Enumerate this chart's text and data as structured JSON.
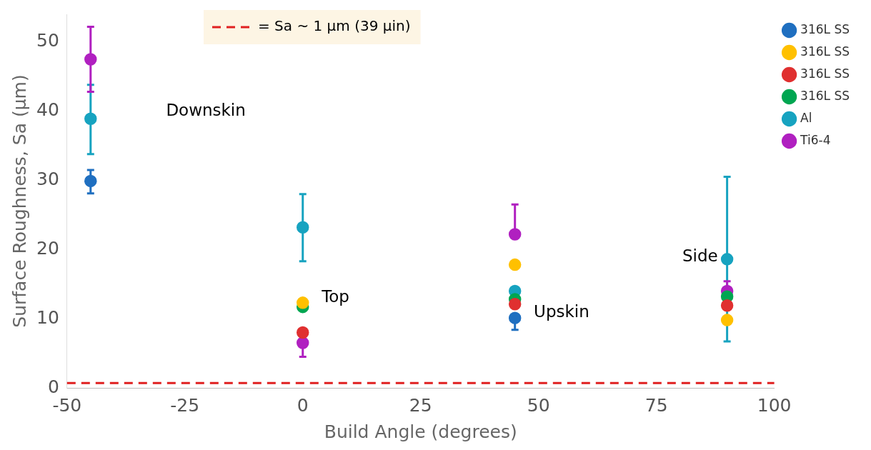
{
  "chart_data": {
    "type": "scatter",
    "xlabel": "Build Angle (degrees)",
    "ylabel": "Surface Roughness, Sa (μm)",
    "xlim": [
      -50,
      100
    ],
    "xticks": [
      -50,
      -25,
      0,
      25,
      50,
      75,
      100
    ],
    "ylim": [
      0,
      54
    ],
    "yticks": [
      0,
      10,
      20,
      30,
      40,
      50
    ],
    "grid": false,
    "legend": "top right",
    "marker": "circle",
    "series": [
      {
        "name": "316L SS",
        "color": "#1f6fc0",
        "x": [
          -45,
          45
        ],
        "values": [
          29.9,
          10.1
        ],
        "errors": [
          [
            28.1,
            31.5
          ],
          [
            8.4,
            10.1
          ]
        ]
      },
      {
        "name": "316L SS",
        "color": "#ffc000",
        "x": [
          0,
          45,
          90
        ],
        "values": [
          12.3,
          17.8,
          9.8
        ]
      },
      {
        "name": "316L SS",
        "color": "#e03030",
        "x": [
          0,
          45,
          90
        ],
        "values": [
          8.0,
          12.1,
          11.9
        ]
      },
      {
        "name": "316L SS",
        "color": "#00a651",
        "x": [
          0,
          45,
          90
        ],
        "values": [
          11.7,
          12.8,
          13.2
        ]
      },
      {
        "name": "Al",
        "color": "#17a3c0",
        "x": [
          -45,
          0,
          45,
          90
        ],
        "values": [
          38.9,
          23.2,
          14.0,
          18.6
        ],
        "errors": [
          [
            33.8,
            43.8
          ],
          [
            18.3,
            28.0
          ],
          null,
          [
            6.7,
            30.5
          ]
        ]
      },
      {
        "name": "Ti6-4",
        "color": "#b020c0",
        "x": [
          -45,
          0,
          45,
          90
        ],
        "values": [
          47.5,
          6.5,
          22.2,
          14.0
        ],
        "errors": [
          [
            42.8,
            52.2
          ],
          [
            4.5,
            6.5
          ],
          [
            22.2,
            26.5
          ],
          [
            14.0,
            15.4
          ]
        ]
      }
    ],
    "ref_lines": [
      {
        "axis": "y",
        "value": 0.7,
        "label": "= Sa ~ 1 μm (39 μin)",
        "color": "#e02020",
        "line_style": "dashed"
      }
    ],
    "annotations": [
      "Downskin",
      "Top",
      "Upskin",
      "Side"
    ]
  }
}
